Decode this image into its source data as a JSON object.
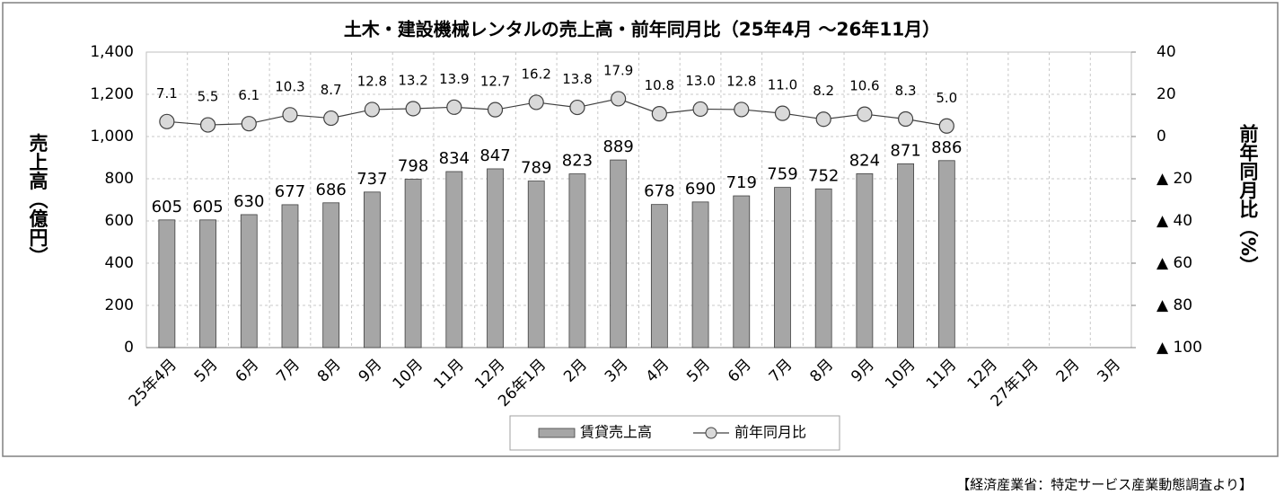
{
  "chart_data": {
    "type": "bar",
    "title": "土木・建設機械レンタルの売上高・前年同月比（25年4月 〜26年11月）",
    "y_label": "売上高（億円）",
    "y2_label": "前年同月比（%）",
    "source": "【経済産業省：特定サービス産業動態調査より】",
    "categories": [
      "25年4月",
      "5月",
      "6月",
      "7月",
      "8月",
      "9月",
      "10月",
      "11月",
      "12月",
      "26年1月",
      "2月",
      "3月",
      "4月",
      "5月",
      "6月",
      "7月",
      "8月",
      "9月",
      "10月",
      "11月",
      "12月",
      "27年1月",
      "2月",
      "3月"
    ],
    "series": [
      {
        "name": "賃貸売上高",
        "type": "bar",
        "color": "#a6a6a6",
        "values": [
          605,
          605,
          630,
          677,
          686,
          737,
          798,
          834,
          847,
          789,
          823,
          889,
          678,
          690,
          719,
          759,
          752,
          824,
          871,
          886,
          null,
          null,
          null,
          null
        ]
      },
      {
        "name": "前年同月比",
        "type": "line",
        "axis": "y2",
        "color": "#d9d9d9",
        "values": [
          7.1,
          5.5,
          6.1,
          10.3,
          8.7,
          12.8,
          13.2,
          13.9,
          12.7,
          16.2,
          13.8,
          17.9,
          10.8,
          13.0,
          12.8,
          11.0,
          8.2,
          10.6,
          8.3,
          5.0,
          null,
          null,
          null,
          null
        ],
        "value_labels": [
          "7.1",
          "5.5",
          "6.1",
          "10.3",
          "8.7",
          "12.8",
          "13.2",
          "13.9",
          "12.7",
          "16.2",
          "13.8",
          "17.9",
          "10.8",
          "13.0",
          "12.8",
          "11.0",
          "8.2",
          "10.6",
          "8.3",
          "5.0",
          null,
          null,
          null,
          null
        ]
      }
    ],
    "ylim": [
      0,
      1400
    ],
    "yticks": [
      0,
      {
        "value": 200,
        "label": "200"
      },
      400,
      600,
      800,
      {
        "value": 1000,
        "label": "1,000"
      },
      {
        "value": 1200,
        "label": "1,200"
      },
      {
        "value": 1400,
        "label": "1,400"
      }
    ],
    "y2lim": [
      -100,
      40
    ],
    "y2ticks": [
      {
        "value": -100,
        "label": "▲ 100"
      },
      {
        "value": -80,
        "label": "▲ 80"
      },
      {
        "value": -60,
        "label": "▲ 60"
      },
      {
        "value": -40,
        "label": "▲ 40"
      },
      {
        "value": -20,
        "label": "▲ 20"
      },
      0,
      20,
      40
    ],
    "grid": true,
    "legend": "bottom"
  }
}
